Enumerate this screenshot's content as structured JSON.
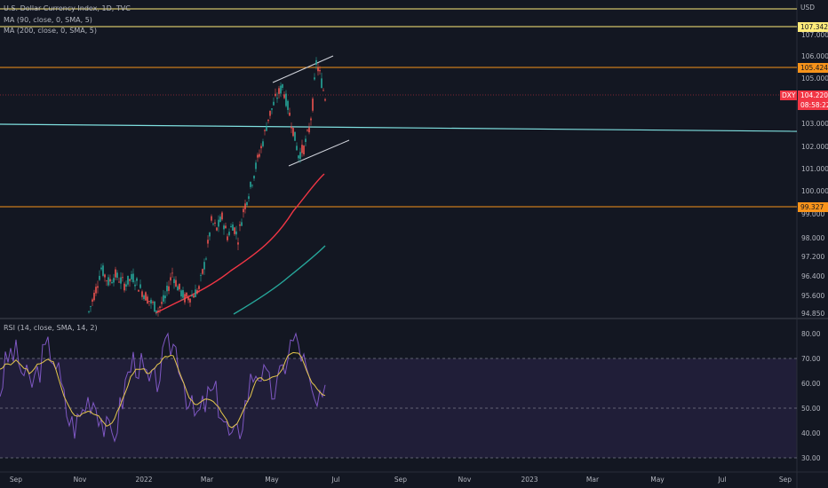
{
  "header": {
    "title": "U.S. Dollar Currency Index, 1D, TVC",
    "ma90": "MA (90, close, 0, SMA, 5)",
    "ma200": "MA (200, close, 0, SMA, 5)",
    "rsi": "RSI (14, close, SMA, 14, 2)",
    "currency": "USD"
  },
  "chart_data": {
    "type": "candlestick",
    "price_axis": {
      "ticks": [
        "107.000",
        "106.000",
        "105.000",
        "103.000",
        "102.000",
        "101.000",
        "100.000",
        "99.000",
        "98.000",
        "97.200",
        "96.400",
        "95.600",
        "94.850"
      ],
      "labels": [
        {
          "text": "107.342",
          "color": "#ffeb7a",
          "text_color": "#131722"
        },
        {
          "text": "105.424",
          "color": "#f7931a",
          "text_color": "#131722"
        },
        {
          "text": "104.220",
          "color": "#f23645",
          "text_color": "#ffffff"
        },
        {
          "text": "08:58:22",
          "color": "#f23645",
          "text_color": "#ffffff"
        },
        {
          "text": "99.327",
          "color": "#f7931a",
          "text_color": "#131722"
        }
      ],
      "symbol_tag": "DXY"
    },
    "rsi_axis": {
      "ticks": [
        "80.00",
        "70.00",
        "60.00",
        "50.00",
        "40.00",
        "30.00"
      ],
      "upper": 70,
      "lower": 30,
      "middle": 50
    },
    "time_axis": {
      "ticks": [
        "Sep",
        "Nov",
        "2022",
        "Mar",
        "May",
        "Jul",
        "Sep",
        "Nov",
        "2023",
        "Mar",
        "May",
        "Jul",
        "Sep"
      ]
    },
    "horizontal_levels": [
      {
        "price": 107.342,
        "color": "#ffeb7a"
      },
      {
        "price": 105.424,
        "color": "#f7931a"
      },
      {
        "price": 99.327,
        "color": "#f7931a"
      }
    ],
    "close_line": {
      "price": 104.22
    },
    "candles_summary": {
      "start_month": "Oct 2021",
      "end_month": "Jun 2022",
      "low": 94.85,
      "high": 105.79,
      "last": 104.22
    },
    "ma90": [
      {
        "t": "2022-01",
        "v": 94.9
      },
      {
        "t": "2022-02",
        "v": 95.8
      },
      {
        "t": "2022-03",
        "v": 96.5
      },
      {
        "t": "2022-04",
        "v": 97.8
      },
      {
        "t": "2022-05",
        "v": 99.2
      },
      {
        "t": "2022-06",
        "v": 100.7
      }
    ],
    "ma200": [
      {
        "t": "2022-03",
        "v": 94.85
      },
      {
        "t": "2022-04",
        "v": 95.6
      },
      {
        "t": "2022-05",
        "v": 96.6
      },
      {
        "t": "2022-06",
        "v": 97.6
      }
    ]
  }
}
